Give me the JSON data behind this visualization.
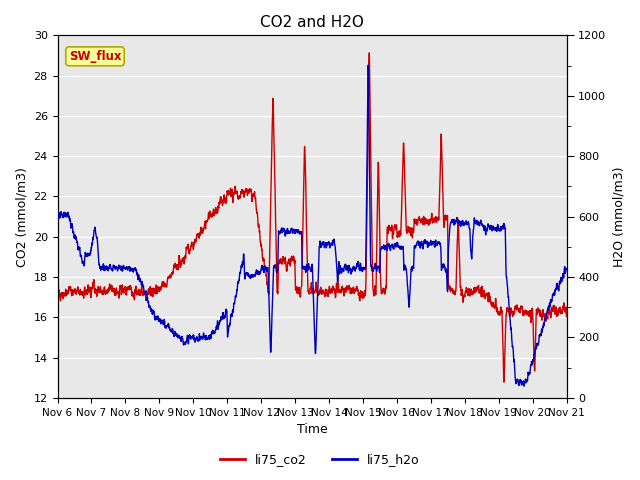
{
  "title": "CO2 and H2O",
  "xlabel": "Time",
  "ylabel_left": "CO2 (mmol/m3)",
  "ylabel_right": "H2O (mmol/m3)",
  "ylim_left": [
    12,
    30
  ],
  "ylim_right": [
    0,
    1200
  ],
  "yticks_left": [
    12,
    14,
    16,
    18,
    20,
    22,
    24,
    26,
    28,
    30
  ],
  "yticks_right": [
    0,
    200,
    400,
    600,
    800,
    1000,
    1200
  ],
  "xtick_labels": [
    "Nov 6",
    "Nov 7",
    "Nov 8",
    "Nov 9",
    "Nov 10",
    "Nov 11",
    "Nov 12",
    "Nov 13",
    "Nov 14",
    "Nov 15",
    "Nov 16",
    "Nov 17",
    "Nov 18",
    "Nov 19",
    "Nov 20",
    "Nov 21"
  ],
  "color_co2": "#CC0000",
  "color_h2o": "#0000BB",
  "legend_label_co2": "li75_co2",
  "legend_label_h2o": "li75_h2o",
  "sw_flux_text": "SW_flux",
  "sw_flux_color": "#CC0000",
  "sw_flux_bg": "#FFFF99",
  "sw_flux_border": "#AAAA00",
  "plot_bg": "#E8E8E8",
  "grid_color": "#FFFFFF",
  "linewidth": 1.0
}
